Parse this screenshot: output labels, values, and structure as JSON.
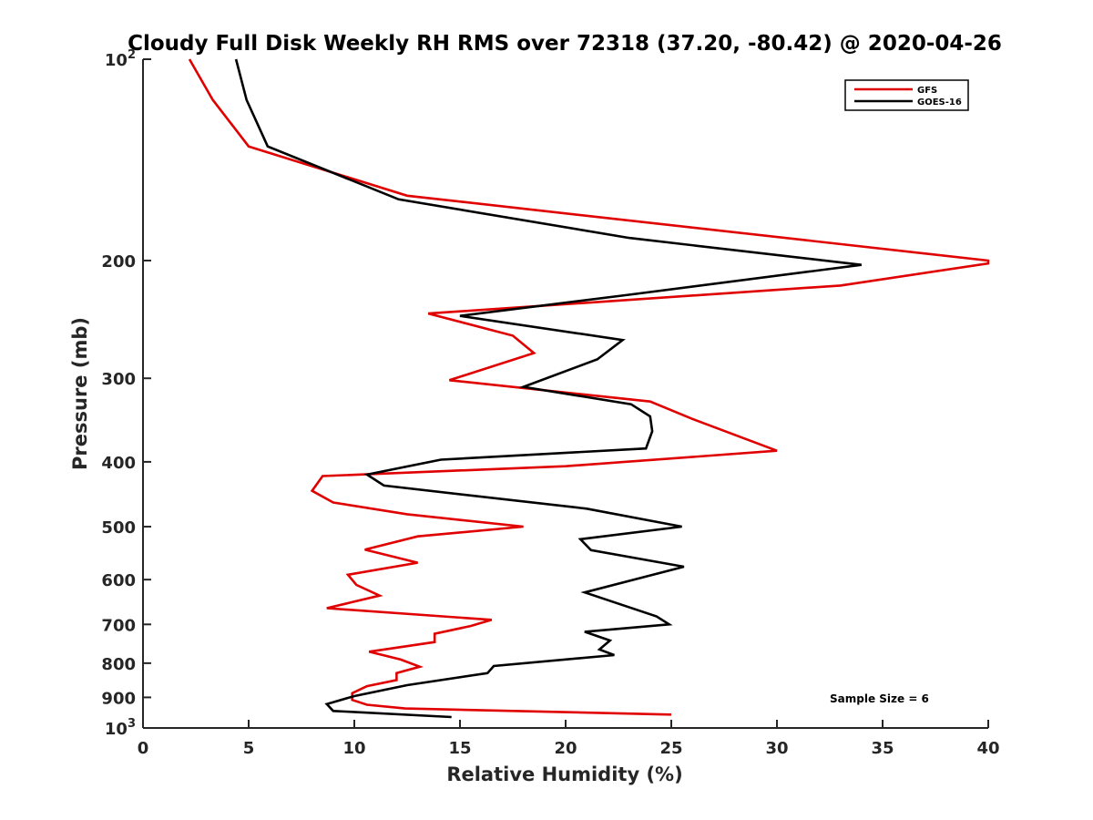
{
  "chart_data": {
    "type": "line",
    "title": "Cloudy Full Disk Weekly RH RMS over 72318 (37.20, -80.42) @ 2020-04-26",
    "xlabel": "Relative Humidity (%)",
    "ylabel": "Pressure (mb)",
    "xlim": [
      0,
      40
    ],
    "ylim": [
      100,
      1000
    ],
    "y_scale": "log",
    "y_reversed": true,
    "grid": false,
    "legend_position": "top-right",
    "x_ticks": [
      {
        "value": 0,
        "label": "0"
      },
      {
        "value": 5,
        "label": "5"
      },
      {
        "value": 10,
        "label": "10"
      },
      {
        "value": 15,
        "label": "15"
      },
      {
        "value": 20,
        "label": "20"
      },
      {
        "value": 25,
        "label": "25"
      },
      {
        "value": 30,
        "label": "30"
      },
      {
        "value": 35,
        "label": "35"
      },
      {
        "value": 40,
        "label": "40"
      }
    ],
    "y_ticks": [
      {
        "value": 100,
        "base": "10",
        "exp": "2"
      },
      {
        "value": 200,
        "label": "200"
      },
      {
        "value": 300,
        "label": "300"
      },
      {
        "value": 400,
        "label": "400"
      },
      {
        "value": 500,
        "label": "500"
      },
      {
        "value": 600,
        "label": "600"
      },
      {
        "value": 700,
        "label": "700"
      },
      {
        "value": 800,
        "label": "800"
      },
      {
        "value": 900,
        "label": "900"
      },
      {
        "value": 1000,
        "base": "10",
        "exp": "3"
      }
    ],
    "annotation": "Sample Size = 6",
    "series": [
      {
        "name": "GFS",
        "color": "#e00000",
        "points": [
          [
            2.2,
            100
          ],
          [
            3.3,
            115
          ],
          [
            5.0,
            135
          ],
          [
            12.5,
            160
          ],
          [
            40.0,
            200
          ],
          [
            40.0,
            202
          ],
          [
            33.0,
            218
          ],
          [
            13.5,
            240
          ],
          [
            17.5,
            259
          ],
          [
            18.5,
            275
          ],
          [
            14.5,
            302
          ],
          [
            24.0,
            325
          ],
          [
            26.0,
            345
          ],
          [
            30.0,
            385
          ],
          [
            20.0,
            406
          ],
          [
            8.5,
            420
          ],
          [
            8.0,
            442
          ],
          [
            9.0,
            460
          ],
          [
            12.5,
            479
          ],
          [
            18.0,
            500
          ],
          [
            13.0,
            517
          ],
          [
            10.5,
            541
          ],
          [
            13.0,
            566
          ],
          [
            9.7,
            590
          ],
          [
            10.1,
            611
          ],
          [
            11.2,
            634
          ],
          [
            8.7,
            662
          ],
          [
            16.5,
            689
          ],
          [
            15.5,
            704
          ],
          [
            13.8,
            723
          ],
          [
            13.8,
            744
          ],
          [
            10.7,
            769
          ],
          [
            12.2,
            790
          ],
          [
            13.1,
            810
          ],
          [
            12.0,
            828
          ],
          [
            12.0,
            848
          ],
          [
            10.6,
            866
          ],
          [
            9.9,
            887
          ],
          [
            9.9,
            908
          ],
          [
            10.6,
            923
          ],
          [
            12.4,
            935
          ],
          [
            25.0,
            955
          ]
        ]
      },
      {
        "name": "GOES-16",
        "color": "#000000",
        "points": [
          [
            4.4,
            100
          ],
          [
            4.9,
            115
          ],
          [
            5.9,
            135
          ],
          [
            12.1,
            162
          ],
          [
            23.0,
            185
          ],
          [
            34.0,
            203
          ],
          [
            23.0,
            225
          ],
          [
            15.0,
            242
          ],
          [
            22.7,
            263
          ],
          [
            21.5,
            281
          ],
          [
            18.0,
            309
          ],
          [
            23.1,
            328
          ],
          [
            24.0,
            342
          ],
          [
            24.1,
            360
          ],
          [
            23.8,
            382
          ],
          [
            14.1,
            397
          ],
          [
            10.6,
            418
          ],
          [
            11.4,
            434
          ],
          [
            21.0,
            470
          ],
          [
            25.5,
            500
          ],
          [
            20.7,
            522
          ],
          [
            21.2,
            542
          ],
          [
            25.6,
            574
          ],
          [
            20.9,
            627
          ],
          [
            24.3,
            681
          ],
          [
            24.9,
            700
          ],
          [
            20.9,
            718
          ],
          [
            22.1,
            740
          ],
          [
            21.6,
            763
          ],
          [
            22.3,
            778
          ],
          [
            16.6,
            808
          ],
          [
            16.3,
            828
          ],
          [
            12.5,
            863
          ],
          [
            10.0,
            896
          ],
          [
            8.7,
            921
          ],
          [
            9.0,
            943
          ],
          [
            14.6,
            963
          ]
        ]
      }
    ]
  }
}
